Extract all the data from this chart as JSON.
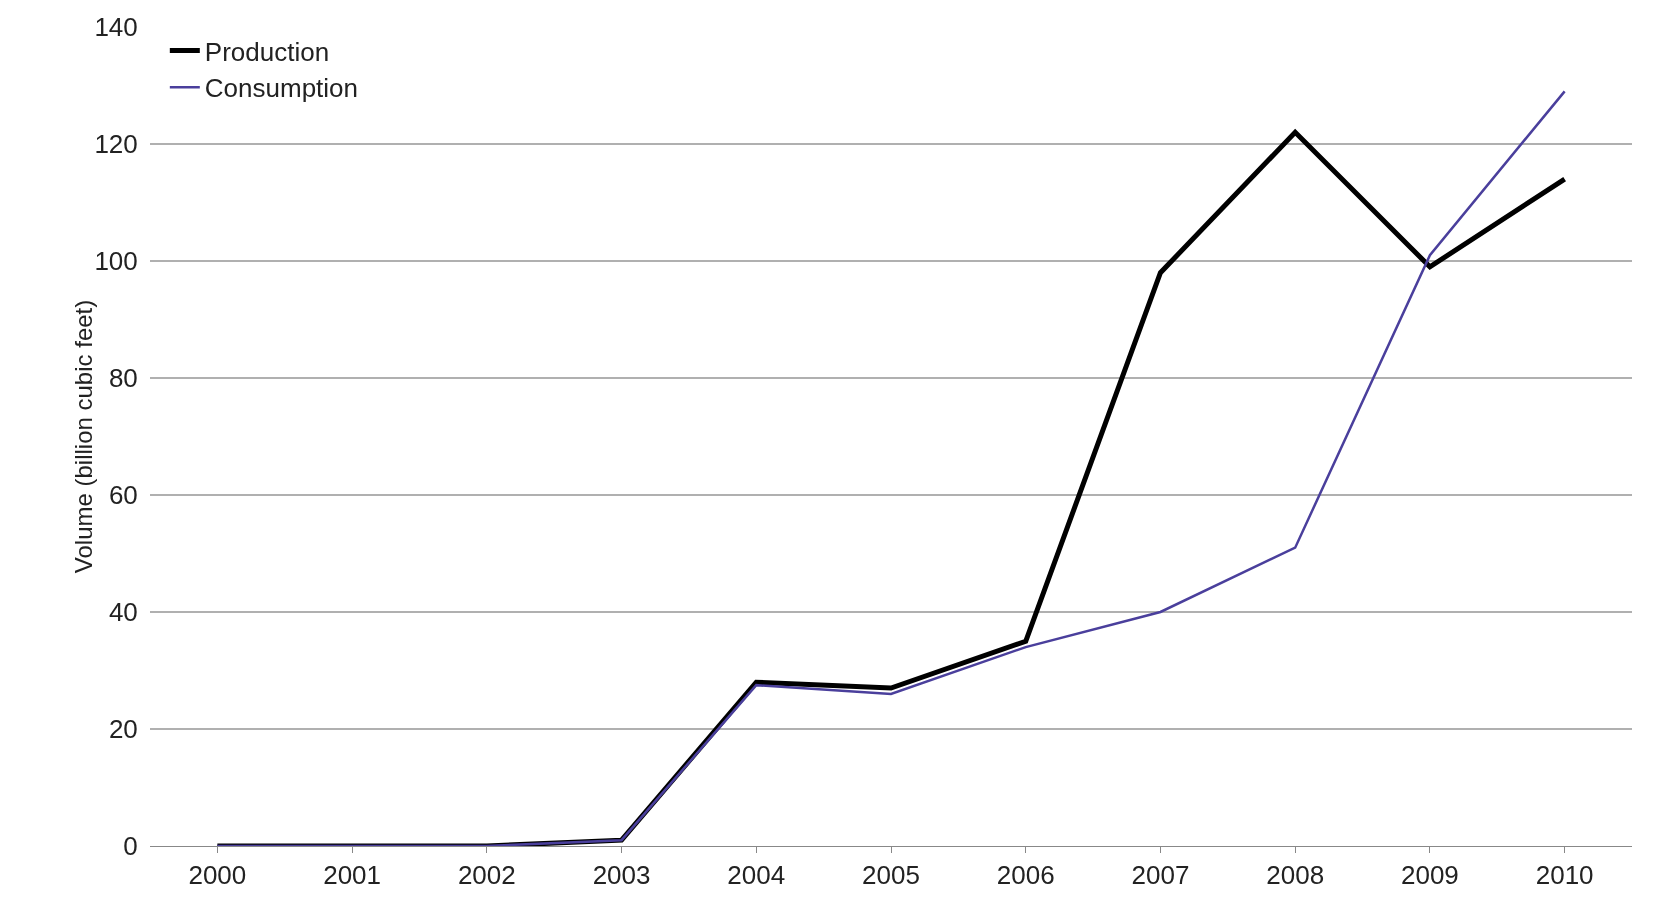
{
  "chart_data": {
    "type": "line",
    "ylabel": "Volume (billion cubic feet)",
    "categories": [
      "2000",
      "2001",
      "2002",
      "2003",
      "2004",
      "2005",
      "2006",
      "2007",
      "2008",
      "2009",
      "2010"
    ],
    "series": [
      {
        "name": "Production",
        "color": "#000000",
        "values": [
          0,
          0,
          0,
          1,
          28,
          27,
          35,
          98,
          122,
          99,
          114
        ]
      },
      {
        "name": "Consumption",
        "color": "#4a3f9c",
        "values": [
          0,
          0,
          0,
          1,
          27.5,
          26,
          34,
          40,
          51,
          101,
          129
        ]
      }
    ],
    "ylim": [
      0,
      140
    ],
    "yticks": [
      0,
      20,
      40,
      60,
      80,
      100,
      120,
      140
    ],
    "grid": "y",
    "legend": "top left",
    "marker": "none",
    "line_style": "solid"
  }
}
